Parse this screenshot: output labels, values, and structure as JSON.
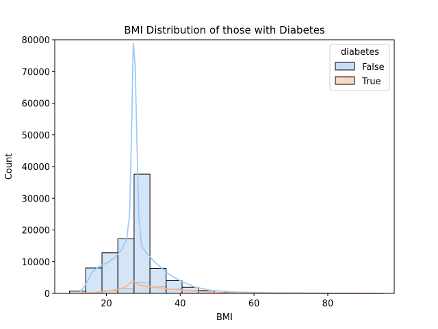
{
  "chart_data": {
    "type": "histogram",
    "title": "BMI Distribution of those with Diabetes",
    "xlabel": "BMI",
    "ylabel": "Count",
    "xlim": [
      6,
      98
    ],
    "ylim": [
      0,
      80000
    ],
    "xticks": [
      20,
      40,
      60,
      80
    ],
    "yticks": [
      0,
      10000,
      20000,
      30000,
      40000,
      50000,
      60000,
      70000,
      80000
    ],
    "grid": false,
    "legend": {
      "title": "diabetes",
      "placement": "top-right"
    },
    "bins": [
      [
        10.0,
        14.4
      ],
      [
        14.4,
        18.8
      ],
      [
        18.8,
        23.1
      ],
      [
        23.1,
        27.5
      ],
      [
        27.5,
        31.8
      ],
      [
        31.8,
        36.2
      ],
      [
        36.2,
        40.5
      ],
      [
        40.5,
        44.9
      ],
      [
        44.9,
        49.3
      ],
      [
        49.3,
        53.6
      ],
      [
        53.6,
        58.0
      ],
      [
        58.0,
        62.3
      ],
      [
        62.3,
        66.7
      ],
      [
        66.7,
        71.1
      ],
      [
        71.1,
        75.4
      ],
      [
        75.4,
        79.8
      ],
      [
        79.8,
        84.1
      ],
      [
        84.1,
        88.5
      ],
      [
        88.5,
        92.8
      ],
      [
        92.8,
        97.2
      ]
    ],
    "series": [
      {
        "name": "False",
        "color": "#a1c9f4",
        "fill": "#c8def5",
        "counts": [
          700,
          8000,
          12800,
          17200,
          37600,
          7900,
          4000,
          1900,
          900,
          300,
          120,
          60,
          30,
          20,
          10,
          5,
          5,
          3,
          2,
          2
        ],
        "kde": [
          [
            13,
            500
          ],
          [
            14.5,
            3000
          ],
          [
            16,
            6500
          ],
          [
            18,
            8500
          ],
          [
            20,
            9500
          ],
          [
            22,
            11000
          ],
          [
            24,
            13500
          ],
          [
            25.5,
            17000
          ],
          [
            26.3,
            25000
          ],
          [
            26.8,
            50000
          ],
          [
            27.3,
            79000
          ],
          [
            27.8,
            72000
          ],
          [
            28.3,
            47000
          ],
          [
            28.8,
            24000
          ],
          [
            29.5,
            15000
          ],
          [
            31,
            12500
          ],
          [
            33,
            10000
          ],
          [
            35,
            8000
          ],
          [
            37,
            6000
          ],
          [
            40,
            4000
          ],
          [
            44,
            2000
          ],
          [
            48,
            1000
          ],
          [
            55,
            400
          ],
          [
            65,
            150
          ],
          [
            80,
            50
          ],
          [
            95,
            20
          ]
        ]
      },
      {
        "name": "True",
        "color": "#ffb482",
        "fill": "#fbd9c4",
        "counts": [
          20,
          150,
          800,
          1500,
          3500,
          2100,
          1400,
          900,
          500,
          200,
          80,
          40,
          20,
          10,
          5,
          3,
          2,
          1,
          1,
          1
        ],
        "kde": [
          [
            13,
            50
          ],
          [
            16,
            200
          ],
          [
            19,
            500
          ],
          [
            22,
            1000
          ],
          [
            24,
            1500
          ],
          [
            25.5,
            2300
          ],
          [
            26.5,
            3300
          ],
          [
            27.2,
            3900
          ],
          [
            28,
            3500
          ],
          [
            29,
            2600
          ],
          [
            31,
            2200
          ],
          [
            34,
            1800
          ],
          [
            37,
            1400
          ],
          [
            40,
            1100
          ],
          [
            44,
            700
          ],
          [
            48,
            400
          ],
          [
            52,
            200
          ],
          [
            58,
            80
          ],
          [
            70,
            30
          ],
          [
            95,
            10
          ]
        ]
      }
    ]
  }
}
